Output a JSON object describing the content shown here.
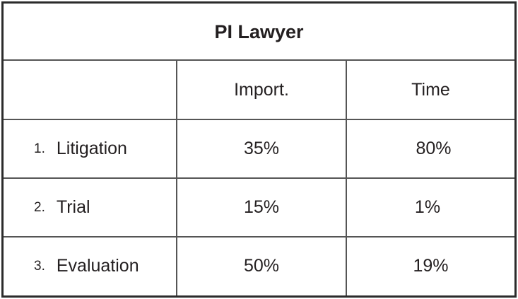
{
  "table": {
    "title": "PI Lawyer",
    "headers": [
      "",
      "Import.",
      "Time"
    ],
    "rows": [
      {
        "number": "1.",
        "label": "Litigation",
        "import": "35%",
        "time": "80%"
      },
      {
        "number": "2.",
        "label": "Trial",
        "import": "15%",
        "time": "1%"
      },
      {
        "number": "3.",
        "label": "Evaluation",
        "import": "50%",
        "time": "19%"
      }
    ]
  }
}
